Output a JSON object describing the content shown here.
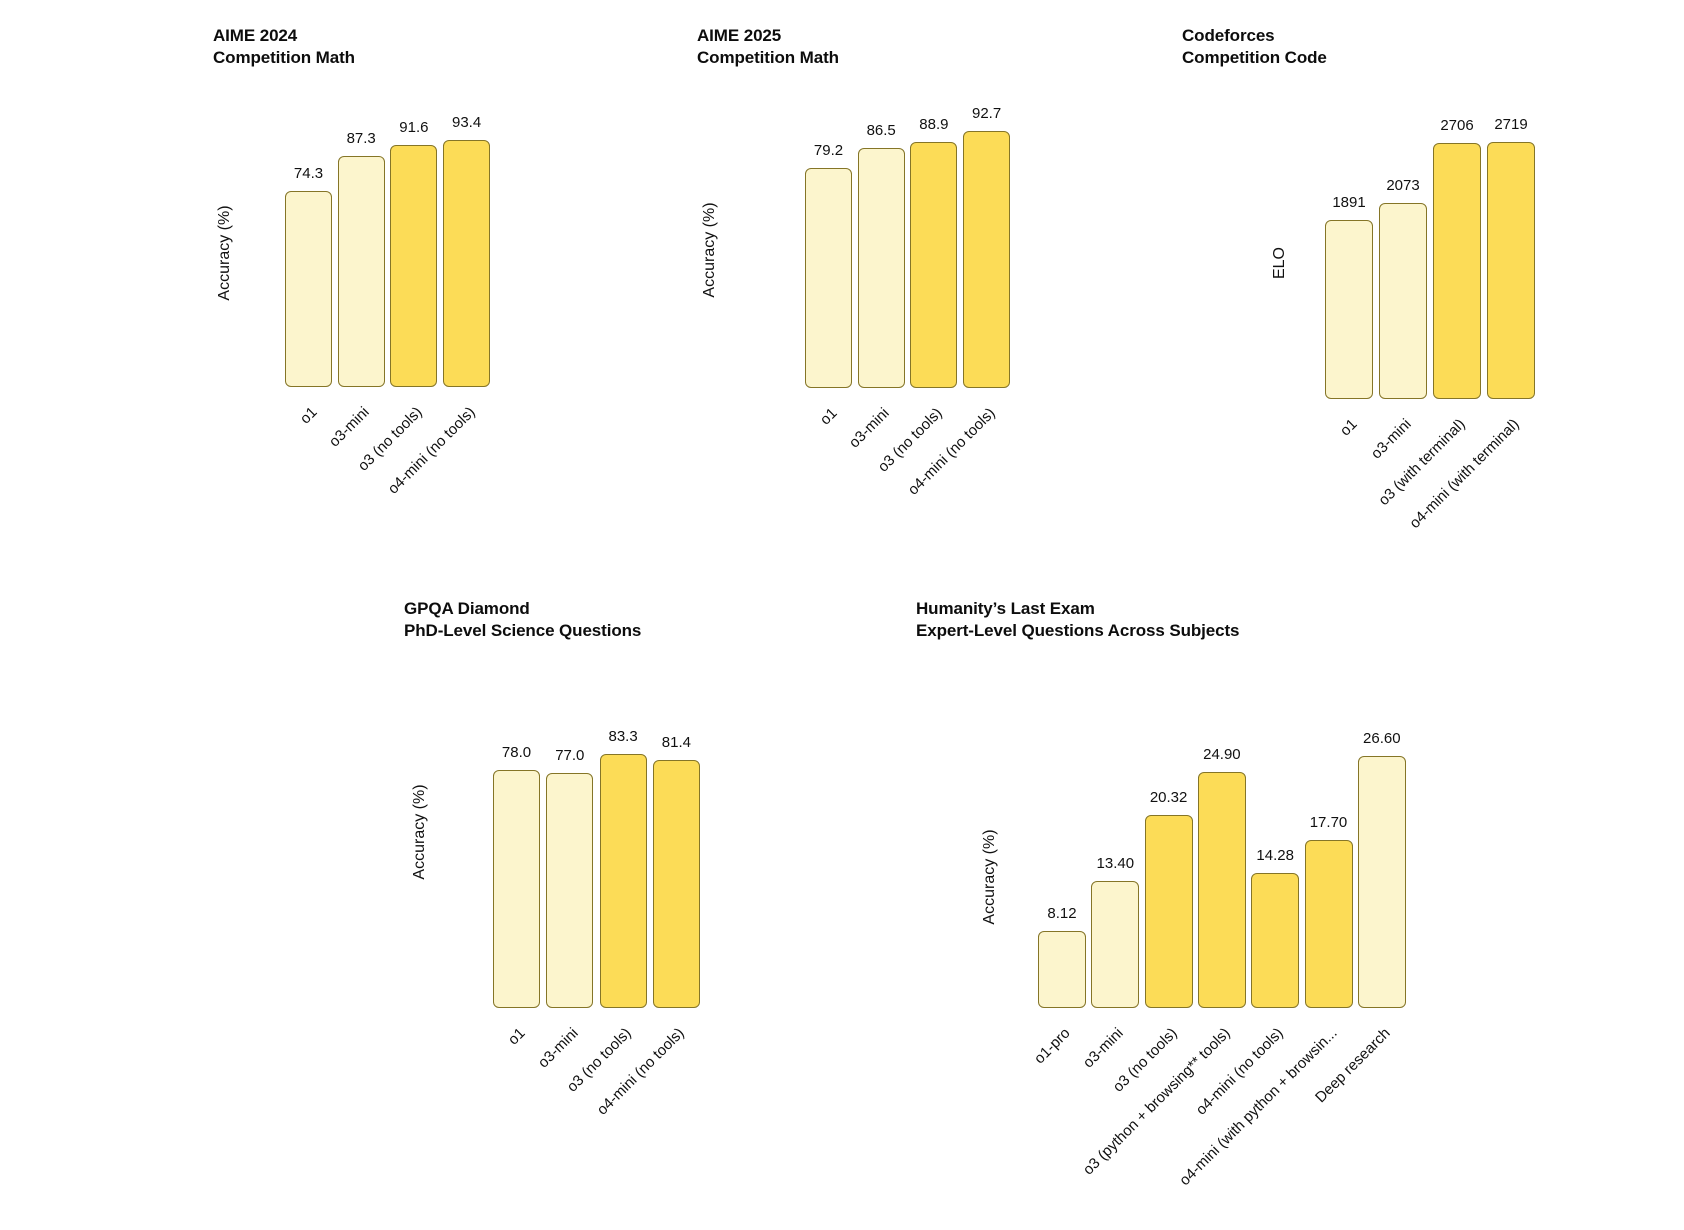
{
  "colors": {
    "bar_light": "#fcf5cd",
    "bar_dark": "#fcdc57",
    "bar_border": "#857527",
    "text": "#111111"
  },
  "chart_data": [
    {
      "type": "bar",
      "title": "AIME 2024",
      "subtitle": "Competition Math",
      "ylabel": "Accuracy (%)",
      "ylim": [
        0,
        100
      ],
      "grid": false,
      "legend": "none",
      "categories": [
        "o1",
        "o3-mini",
        "o3 (no tools)",
        "o4-mini (no tools)"
      ],
      "values": [
        74.3,
        87.3,
        91.6,
        93.4
      ],
      "value_labels": [
        "74.3",
        "87.3",
        "91.6",
        "93.4"
      ],
      "bar_styles": [
        "light",
        "light",
        "dark",
        "dark"
      ]
    },
    {
      "type": "bar",
      "title": "AIME 2025",
      "subtitle": "Competition Math",
      "ylabel": "Accuracy (%)",
      "ylim": [
        0,
        100
      ],
      "grid": false,
      "legend": "none",
      "categories": [
        "o1",
        "o3-mini",
        "o3 (no tools)",
        "o4-mini (no tools)"
      ],
      "values": [
        79.2,
        86.5,
        88.9,
        92.7
      ],
      "value_labels": [
        "79.2",
        "86.5",
        "88.9",
        "92.7"
      ],
      "bar_styles": [
        "light",
        "light",
        "dark",
        "dark"
      ]
    },
    {
      "type": "bar",
      "title": "Codeforces",
      "subtitle": "Competition Code",
      "ylabel": "ELO",
      "ylim": [
        0,
        2800
      ],
      "grid": false,
      "legend": "none",
      "categories": [
        "o1",
        "o3-mini",
        "o3 (with terminal)",
        "o4-mini (with terminal)"
      ],
      "values": [
        1891,
        2073,
        2706,
        2719
      ],
      "value_labels": [
        "1891",
        "2073",
        "2706",
        "2719"
      ],
      "bar_styles": [
        "light",
        "light",
        "dark",
        "dark"
      ]
    },
    {
      "type": "bar",
      "title": "GPQA Diamond",
      "subtitle": "PhD-Level Science Questions",
      "ylabel": "Accuracy (%)",
      "ylim": [
        0,
        100
      ],
      "grid": false,
      "legend": "none",
      "categories": [
        "o1",
        "o3-mini",
        "o3 (no tools)",
        "o4-mini (no tools)"
      ],
      "values": [
        78.0,
        77.0,
        83.3,
        81.4
      ],
      "value_labels": [
        "78.0",
        "77.0",
        "83.3",
        "81.4"
      ],
      "bar_styles": [
        "light",
        "light",
        "dark",
        "dark"
      ]
    },
    {
      "type": "bar",
      "title": "Humanity’s Last Exam",
      "subtitle": "Expert-Level Questions Across Subjects",
      "ylabel": "Accuracy (%)",
      "ylim": [
        0,
        30
      ],
      "grid": false,
      "legend": "none",
      "categories": [
        "o1-pro",
        "o3-mini",
        "o3 (no tools)",
        "o3 (python + browsing** tools)",
        "o4-mini (no tools)",
        "o4-mini (with python + browsin...",
        "Deep research"
      ],
      "values": [
        8.12,
        13.4,
        20.32,
        24.9,
        14.28,
        17.7,
        26.6
      ],
      "value_labels": [
        "8.12",
        "13.40",
        "20.32",
        "24.90",
        "14.28",
        "17.70",
        "26.60"
      ],
      "bar_styles": [
        "light",
        "light",
        "dark",
        "dark",
        "dark",
        "dark",
        "light"
      ]
    }
  ]
}
